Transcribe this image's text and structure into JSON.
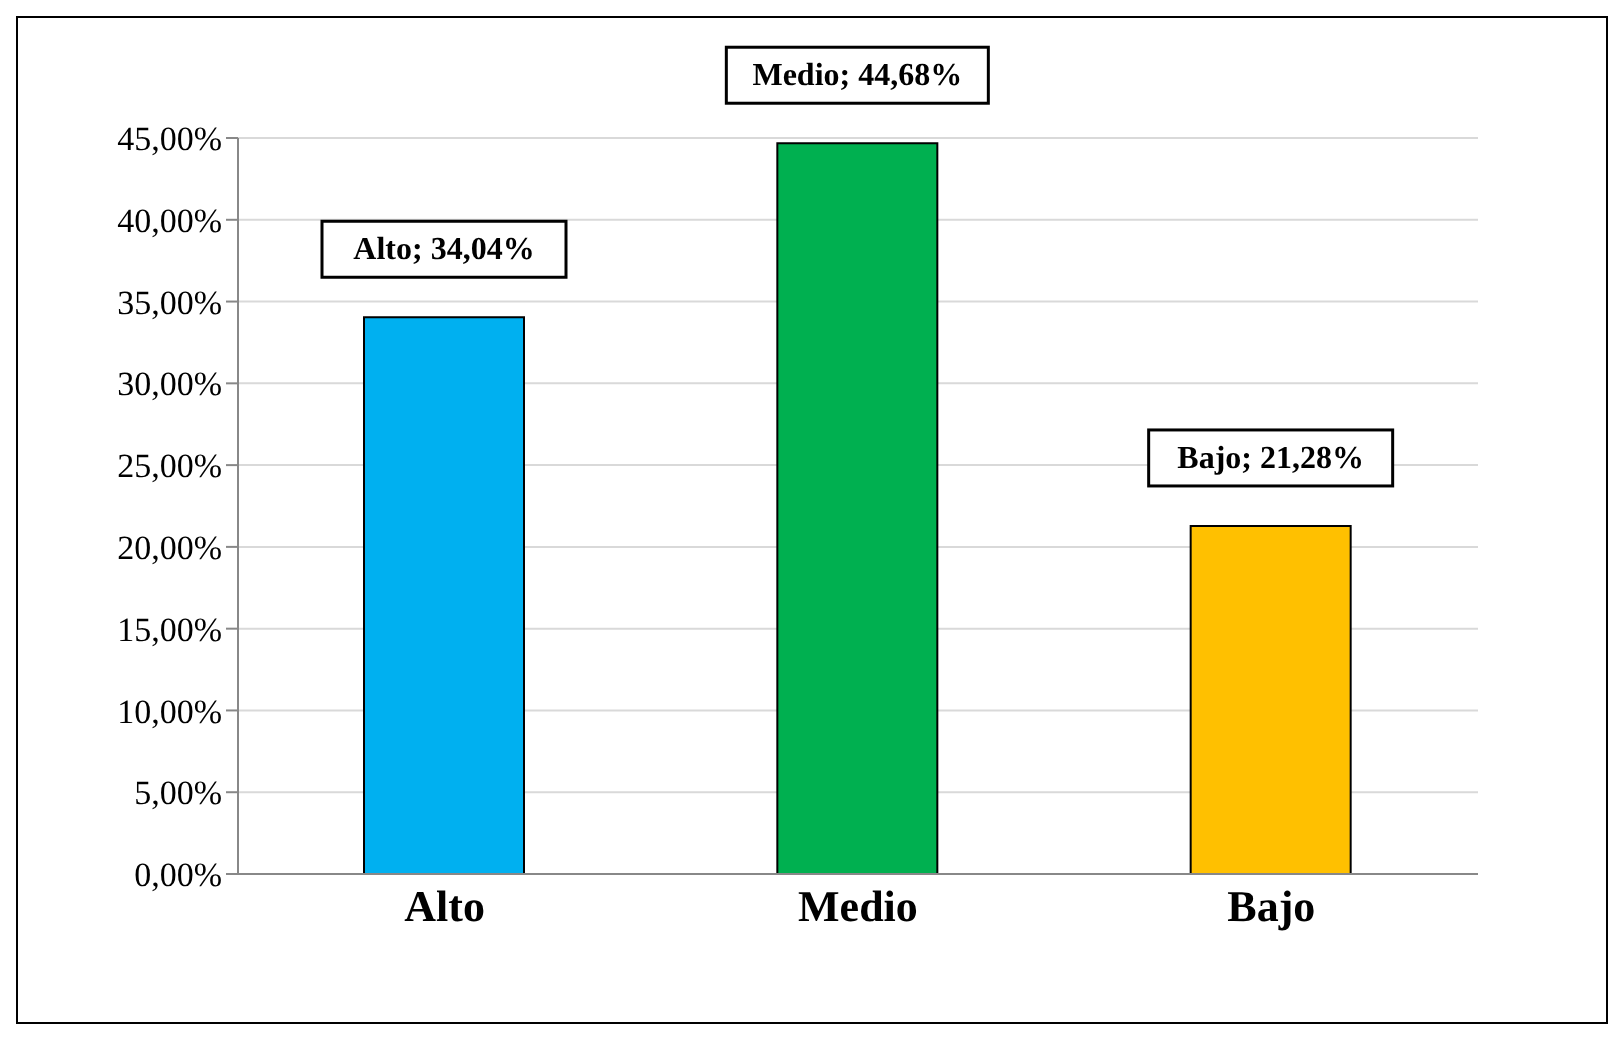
{
  "chart_data": {
    "type": "bar",
    "categories": [
      "Alto",
      "Medio",
      "Bajo"
    ],
    "values": [
      34.04,
      44.68,
      21.28
    ],
    "colors": [
      "#00b0f0",
      "#00b050",
      "#ffc000"
    ],
    "value_labels": [
      "Alto; 34,04%",
      "Medio; 44,68%",
      "Bajo; 21,28%"
    ],
    "ylim": [
      0,
      45
    ],
    "yticks": [
      {
        "value": 0,
        "label": "0,00%"
      },
      {
        "value": 5,
        "label": "5,00%"
      },
      {
        "value": 10,
        "label": "10,00%"
      },
      {
        "value": 15,
        "label": "15,00%"
      },
      {
        "value": 20,
        "label": "20,00%"
      },
      {
        "value": 25,
        "label": "25,00%"
      },
      {
        "value": 30,
        "label": "30,00%"
      },
      {
        "value": 35,
        "label": "35,00%"
      },
      {
        "value": 40,
        "label": "40,00%"
      },
      {
        "value": 45,
        "label": "45,00%"
      }
    ],
    "grid": "y",
    "legend": false
  }
}
